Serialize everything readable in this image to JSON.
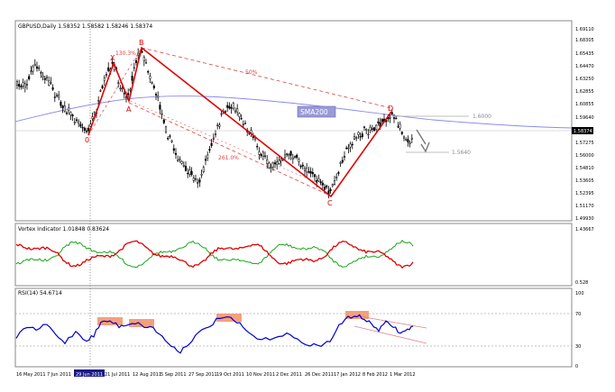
{
  "main_panel": {
    "header": "GBPUSD,Daily  1.58352 1.58582 1.58246 1.58374",
    "price_ticks": [
      "1.69110",
      "1.68305",
      "1.65435",
      "1.64470",
      "1.63250",
      "1.62855",
      "1.60855",
      "1.59640",
      "1.58374",
      "1.57275",
      "1.56000",
      "1.54810",
      "1.53605",
      "1.52395",
      "1.51170",
      "1.49930"
    ],
    "current_price": "1.58374",
    "labels": {
      "X": "X",
      "A": "A",
      "B": "B",
      "C": "C",
      "D": "D",
      "zero": "0",
      "ratio_xb": "130.3%",
      "ratio_bd": "50%",
      "ratio_ac": "261.0%",
      "sma": "SMA200",
      "level_1": "1.6000",
      "level_2": "1.5640"
    }
  },
  "vortex_panel": {
    "header": "Vortex Indicator 1.01848 0.83624",
    "ticks": [
      "1.43667",
      "0.528"
    ]
  },
  "rsi_panel": {
    "header": "RSI(14) 54.6714",
    "ticks": [
      "100",
      "70",
      "30",
      "0"
    ]
  },
  "time_axis": {
    "labels": [
      "16 May 2011",
      "7 Jun 2011",
      "29 Jun 2011",
      "21 Jul 2011",
      "12 Aug 2011",
      "5 Sep 2011",
      "27 Sep 2011",
      "19 Oct 2011",
      "10 Nov 2011",
      "2 Dec 2011",
      "26 Dec 2011",
      "17 Jan 2012",
      "8 Feb 2012",
      "1 Mar 2012"
    ]
  },
  "colors": {
    "pattern_red": "#e00000",
    "sma_blue": "#8a8af0",
    "vortex_green": "#00a000",
    "vortex_red": "#e00000",
    "rsi_blue": "#0000d0",
    "highlight": "#f4a07a",
    "sma_label_bg": "#9a9ad8"
  },
  "chart_data": [
    {
      "type": "candlestick",
      "title": "GBPUSD,Daily",
      "ylim": [
        1.4993,
        1.6911
      ],
      "ylabel": "",
      "xlabel": "",
      "points": [
        {
          "label": "0",
          "x": "29 Jun 2011",
          "y": 1.598
        },
        {
          "label": "X",
          "x": "21 Jul 2011",
          "y": 1.6475
        },
        {
          "label": "A",
          "x": "4 Aug 2011",
          "y": 1.612
        },
        {
          "label": "B",
          "x": "12 Aug 2011",
          "y": 1.662
        },
        {
          "label": "C",
          "x": "12 Jan 2012",
          "y": 1.525
        },
        {
          "label": "D",
          "x": "29 Feb 2012",
          "y": 1.6
        }
      ],
      "annotations": [
        "130.3%",
        "50%",
        "261.0%",
        "SMA200",
        "1.6000",
        "1.5640"
      ]
    },
    {
      "type": "line",
      "title": "Vortex Indicator",
      "series": [
        {
          "name": "",
          "values": [
            1.01848
          ]
        },
        {
          "name": "",
          "values": [
            0.83624
          ]
        }
      ]
    },
    {
      "type": "line",
      "title": "RSI(14)",
      "ylim": [
        0,
        100
      ],
      "series": [
        {
          "name": "",
          "values": [
            54.6714
          ]
        }
      ]
    }
  ]
}
